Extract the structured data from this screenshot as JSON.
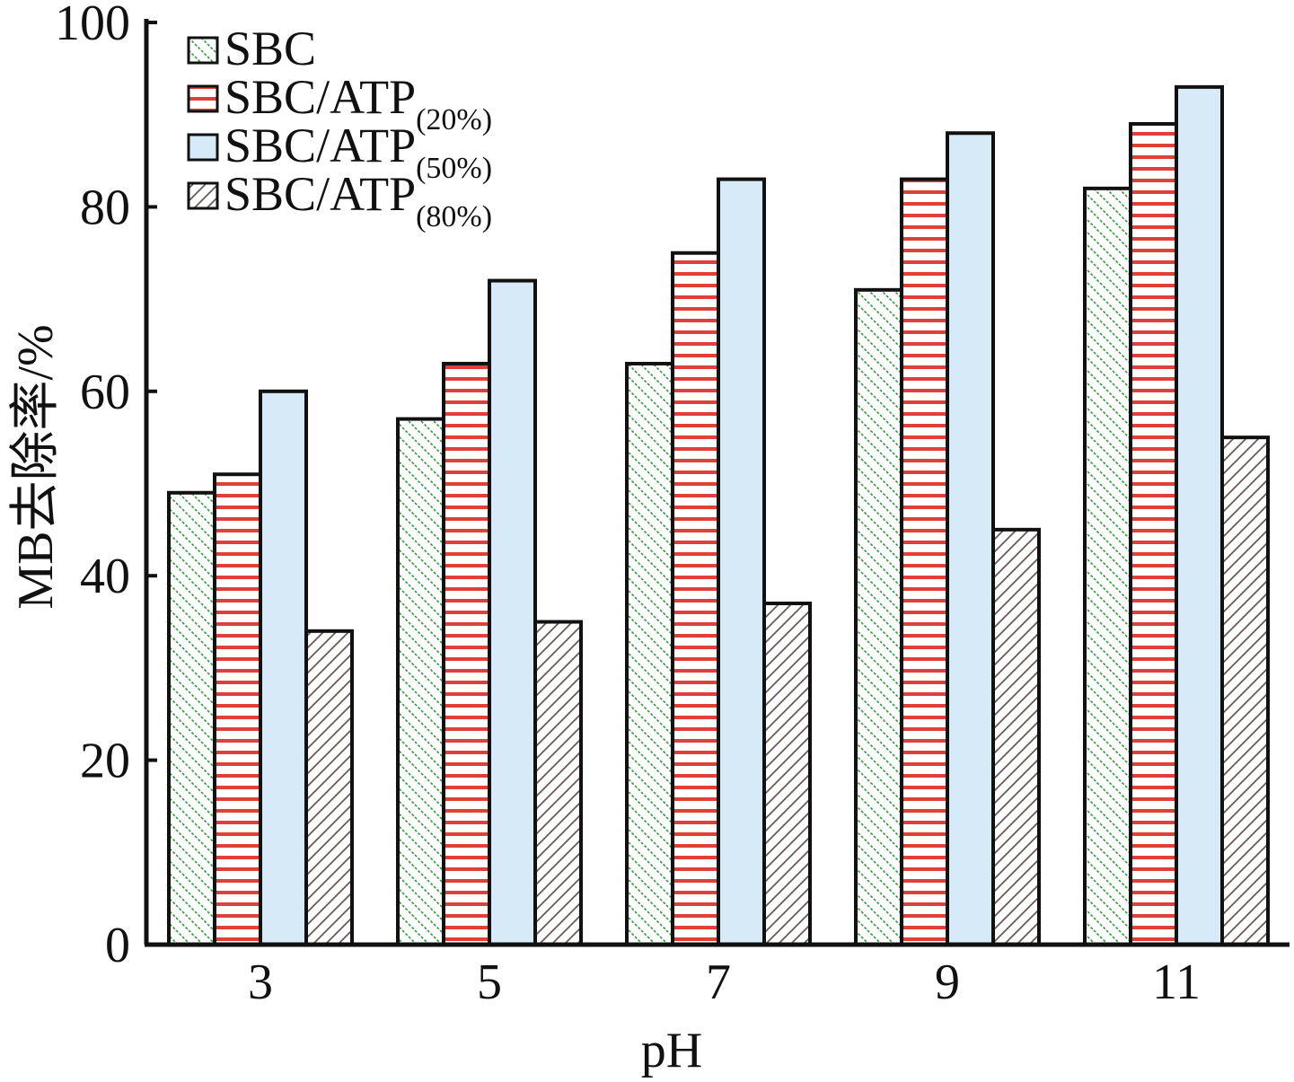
{
  "chart_data": {
    "type": "bar",
    "xlabel": "pH",
    "ylabel": "MB去除率/%",
    "categories": [
      "3",
      "5",
      "7",
      "9",
      "11"
    ],
    "ylim": [
      0,
      100
    ],
    "yticks": [
      "0",
      "20",
      "40",
      "60",
      "80",
      "100"
    ],
    "legend_position": "top-left",
    "grid": false,
    "series": [
      {
        "name": "SBC",
        "name_main": "SBC",
        "name_sub": "",
        "values": [
          49,
          57,
          63,
          71,
          82
        ],
        "color": "#2f9a3a",
        "pattern": "diag-back"
      },
      {
        "name": "SBC/ATP(20%)",
        "name_main": "SBC/ATP",
        "name_sub": "(20%)",
        "values": [
          51,
          63,
          75,
          83,
          89
        ],
        "color": "#e0403a",
        "pattern": "horizontal"
      },
      {
        "name": "SBC/ATP(50%)",
        "name_main": "SBC/ATP",
        "name_sub": "(50%)",
        "values": [
          60,
          72,
          83,
          88,
          93
        ],
        "color": "#d6eaf8",
        "pattern": "solid"
      },
      {
        "name": "SBC/ATP(80%)",
        "name_main": "SBC/ATP",
        "name_sub": "(80%)",
        "values": [
          34,
          35,
          37,
          45,
          55
        ],
        "color": "#6b5a55",
        "pattern": "diag-fwd"
      }
    ]
  }
}
